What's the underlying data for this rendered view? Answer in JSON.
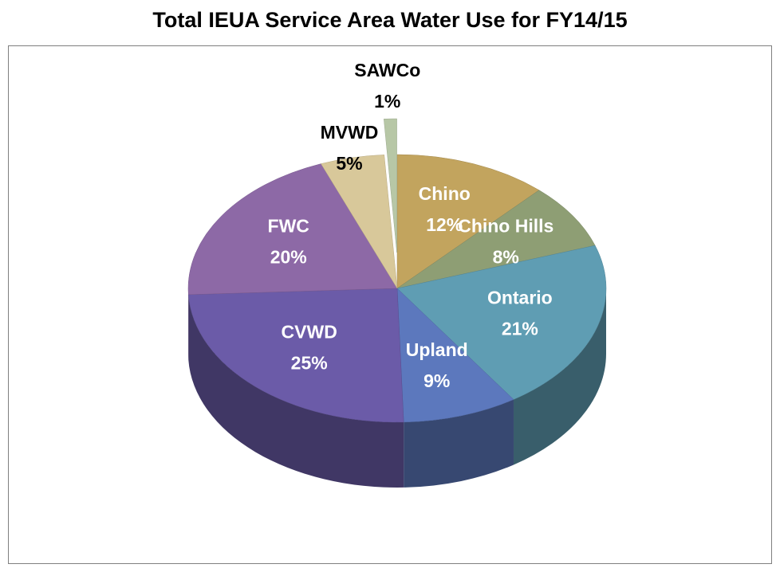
{
  "chart_data": {
    "type": "pie3d",
    "title": "Total IEUA Service Area Water Use for FY14/15",
    "categories": [
      "Chino",
      "Chino Hills",
      "Ontario",
      "Upland",
      "CVWD",
      "FWC",
      "MVWD",
      "SAWCo"
    ],
    "values": [
      12,
      8,
      21,
      9,
      25,
      20,
      5,
      1
    ],
    "value_labels": [
      "12%",
      "8%",
      "21%",
      "9%",
      "25%",
      "20%",
      "5%",
      "1%"
    ],
    "colors": [
      "#c2a45e",
      "#8e9e74",
      "#5f9db3",
      "#5c78bd",
      "#6b5ba8",
      "#8d69a6",
      "#d8c89a",
      "#b7c7a6"
    ]
  }
}
